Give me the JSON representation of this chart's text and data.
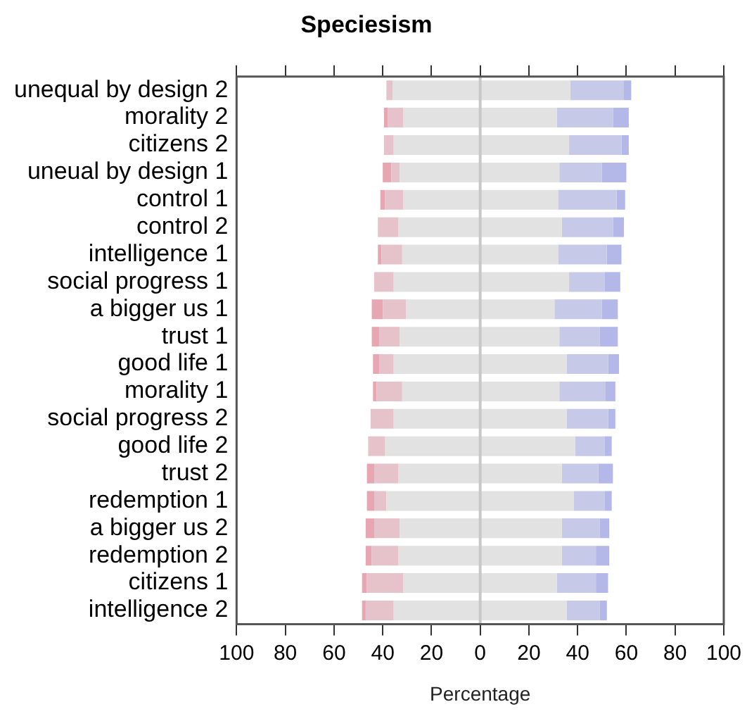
{
  "chart_data": {
    "type": "bar",
    "orientation": "horizontal",
    "stacked": true,
    "title": "Speciesism",
    "xlabel": "Percentage",
    "categories": [
      "unequal by design 2",
      "morality 2",
      "citizens 2",
      "uneual by design 1",
      "control 1",
      "control 2",
      "intelligence 1",
      "social progress 1",
      "a bigger us 1",
      "trust 1",
      "good life 1",
      "morality 1",
      "social progress 2",
      "good life 2",
      "trust 2",
      "redemption 1",
      "a bigger us 2",
      "redemption 2",
      "citizens 1",
      "intelligence 2"
    ],
    "series": [
      {
        "color": "#e2e2e2",
        "values": [
          -36,
          -31.5,
          -35.5,
          -33,
          -31.5,
          -33.5,
          -32,
          -35.5,
          -30.5,
          -33,
          -35.5,
          -32,
          -35.5,
          -39,
          -33.5,
          -38.5,
          -33,
          -33.5,
          -31.5,
          -35.5
        ]
      },
      {
        "color": "#e6c3cb",
        "values": [
          -2.5,
          -6.5,
          -4,
          -3.5,
          -7.5,
          -8.5,
          -8.5,
          -8,
          -9.5,
          -8.5,
          -6,
          -10.5,
          -9.5,
          -7,
          -10,
          -5,
          -10.5,
          -11,
          -15,
          -11.5
        ]
      },
      {
        "color": "#e6a7b3",
        "values": [
          0,
          -1.5,
          0,
          -3.5,
          -2,
          0,
          -1.5,
          0,
          -4.5,
          -3,
          -2.5,
          -1.5,
          0,
          0,
          -3,
          -3,
          -3.5,
          -2.5,
          -2,
          -1.5
        ]
      },
      {
        "color": "#e2e2e2",
        "values": [
          37,
          31.5,
          36.5,
          32.5,
          32,
          33.5,
          32,
          36.5,
          30.5,
          32.5,
          35.5,
          32.5,
          35.5,
          39,
          33.5,
          38.5,
          33.5,
          33.5,
          31.5,
          35.5
        ]
      },
      {
        "color": "#c6c9e7",
        "values": [
          22,
          23,
          21.5,
          17.5,
          24,
          21,
          20,
          14.5,
          19.5,
          16.5,
          17,
          19,
          17,
          12,
          15,
          12.5,
          15.5,
          14,
          16,
          13.5
        ]
      },
      {
        "color": "#b3b8e9",
        "values": [
          3,
          6.5,
          3,
          10,
          3.5,
          4.5,
          6,
          6.5,
          6.5,
          7.5,
          4.5,
          4,
          3,
          3,
          6,
          3,
          4,
          5.5,
          5,
          3
        ]
      }
    ],
    "xlim": [
      -100,
      100
    ],
    "xticks": [
      {
        "value": -100,
        "label": "100"
      },
      {
        "value": -80,
        "label": "80"
      },
      {
        "value": -60,
        "label": "60"
      },
      {
        "value": -40,
        "label": "40"
      },
      {
        "value": -20,
        "label": "20"
      },
      0,
      20,
      40,
      60,
      80,
      100
    ],
    "ref_lines": [
      {
        "axis": "x",
        "value": 0,
        "color": "#c8c8c8"
      }
    ],
    "legend": false
  }
}
